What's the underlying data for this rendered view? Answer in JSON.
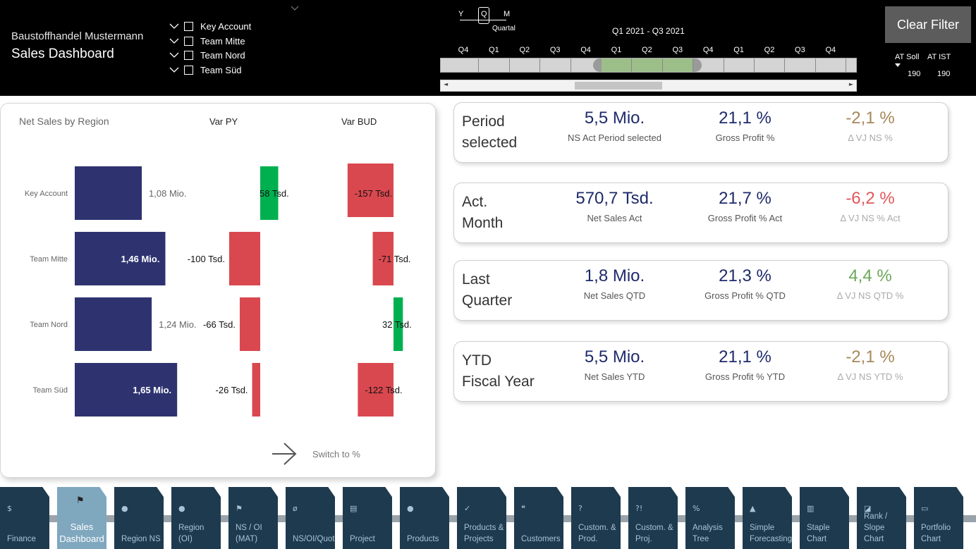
{
  "header": {
    "company": "Baustoffhandel Mustermann",
    "title": "Sales Dashboard",
    "teams": [
      "Key Account",
      "Team Mitte",
      "Team Nord",
      "Team Süd"
    ],
    "granularity": {
      "letters": [
        "Y",
        "Q",
        "M"
      ],
      "selected": "Q",
      "label": "Quartal"
    },
    "range_label": "Q1 2021 - Q3 2021",
    "quarters": [
      "Q4",
      "Q1",
      "Q2",
      "Q3",
      "Q4",
      "Q1",
      "Q2",
      "Q3",
      "Q4",
      "Q1",
      "Q2",
      "Q3",
      "Q4",
      "Q"
    ],
    "selected_quarters": [
      5,
      7
    ],
    "clear_filter": "Clear Filter",
    "at_soll_label": "AT Soll",
    "at_ist_label": "AT IST",
    "at_soll_value": "190",
    "at_ist_value": "190",
    "scroll_left": "◄",
    "scroll_right": "►"
  },
  "chart": {
    "title": "Net Sales by Region",
    "col_py": "Var PY",
    "col_bud": "Var BUD",
    "switch_label": "Switch to %",
    "colors": {
      "bar": "#2e3370",
      "neg": "#d9484f",
      "pos": "#00b050"
    }
  },
  "chart_data": {
    "type": "bar",
    "categories": [
      "Key Account",
      "Team Mitte",
      "Team Nord",
      "Team Süd"
    ],
    "series": [
      {
        "name": "Net Sales by Region",
        "values": [
          1.08,
          1.46,
          1.24,
          1.65
        ],
        "labels": [
          "1,08 Mio.",
          "1,46 Mio.",
          "1,24 Mio.",
          "1,65 Mio."
        ]
      },
      {
        "name": "Var PY",
        "values": [
          58,
          -100,
          -66,
          -26
        ],
        "labels": [
          "58 Tsd.",
          "-100 Tsd.",
          "-66 Tsd.",
          "-26 Tsd."
        ]
      },
      {
        "name": "Var BUD",
        "values": [
          -157,
          -71,
          32,
          -122
        ],
        "labels": [
          "-157 Tsd.",
          "-71 Tsd.",
          "32 Tsd.",
          "-122 Tsd."
        ]
      }
    ]
  },
  "kpis": [
    {
      "title_l1": "Period",
      "title_l2": "selected",
      "v1": "5,5 Mio.",
      "s1": "NS Act Period selected",
      "v2": "21,1 %",
      "s2": "Gross Profit %",
      "v3": "-2,1 %",
      "s3": "Δ VJ NS %",
      "v3_color": "#a6875a"
    },
    {
      "title_l1": "Act.",
      "title_l2": "Month",
      "v1": "570,7 Tsd.",
      "s1": "Net Sales Act",
      "v2": "21,7 %",
      "s2": "Gross Profit % Act",
      "v3": "-6,2 %",
      "s3": "Δ VJ NS % Act",
      "v3_color": "#e0575c"
    },
    {
      "title_l1": "Last",
      "title_l2": "Quarter",
      "v1": "1,8 Mio.",
      "s1": "Net Sales QTD",
      "v2": "21,3 %",
      "s2": "Gross Profit % QTD",
      "v3": "4,4 %",
      "s3": "Δ VJ NS  QTD %",
      "v3_color": "#6aa85a"
    },
    {
      "title_l1": "YTD",
      "title_l2": "Fiscal Year",
      "v1": "5,5 Mio.",
      "s1": "Net Sales YTD",
      "v2": "21,1 %",
      "s2": "Gross Profit % YTD",
      "v3": "-2,1 %",
      "s3": "Δ VJ NS  YTD %",
      "v3_color": "#a6875a"
    }
  ],
  "nav": [
    {
      "icon": "$",
      "label": "Finance",
      "icon_name": "dollar-icon"
    },
    {
      "icon": "⚑",
      "label": "Sales Dashboard",
      "icon_name": "flag-icon",
      "active": true
    },
    {
      "icon": "●",
      "label": "Region NS",
      "icon_name": "globe-icon"
    },
    {
      "icon": "●",
      "label": "Region (OI)",
      "icon_name": "globe-icon"
    },
    {
      "icon": "⚑",
      "label": "NS / OI (MAT)",
      "icon_name": "flag-icon"
    },
    {
      "icon": "ø",
      "label": "NS/OI/Quotes",
      "icon_name": "average-icon"
    },
    {
      "icon": "▤",
      "label": "Project",
      "icon_name": "project-icon"
    },
    {
      "icon": "●",
      "label": "Products",
      "icon_name": "bulb-icon"
    },
    {
      "icon": "✓",
      "label": "Products & Projects",
      "icon_name": "check-icon"
    },
    {
      "icon": "❝",
      "label": "Customers",
      "icon_name": "quote-icon"
    },
    {
      "icon": "?",
      "label": "Custom. & Prod.",
      "icon_name": "question-icon"
    },
    {
      "icon": "?!",
      "label": "Custom. & Proj.",
      "icon_name": "interrobang-icon"
    },
    {
      "icon": "%",
      "label": "Analysis Tree",
      "icon_name": "percent-icon"
    },
    {
      "icon": "▲",
      "label": "Simple Forecasting",
      "icon_name": "forecast-icon"
    },
    {
      "icon": "▥",
      "label": "Staple Chart",
      "icon_name": "bar-chart-icon"
    },
    {
      "icon": "◪",
      "label": "Rank / Slope Chart",
      "icon_name": "slope-chart-icon"
    },
    {
      "icon": "▭",
      "label": "Portfolio Chart",
      "icon_name": "portfolio-icon"
    }
  ]
}
